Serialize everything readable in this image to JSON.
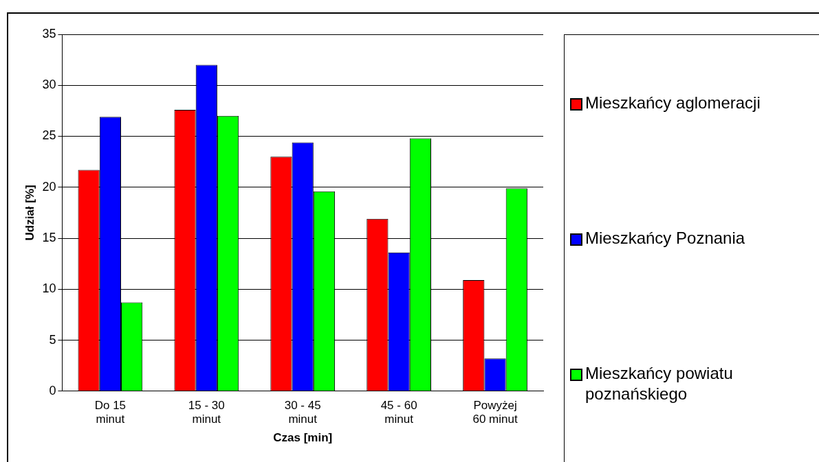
{
  "chart_data": {
    "type": "bar",
    "xlabel": "Czas [min]",
    "ylabel": "Udział [%]",
    "categories": [
      "Do 15 minut",
      "15 - 30 minut",
      "30 - 45 minut",
      "45 - 60 minut",
      "Powyżej 60 minut"
    ],
    "series": [
      {
        "name": "Mieszkańcy aglomeracji",
        "color": "#ff0000",
        "values": [
          21.7,
          27.6,
          23.0,
          16.9,
          10.9
        ]
      },
      {
        "name": "Mieszkańcy Poznania",
        "color": "#0000ff",
        "values": [
          26.9,
          32.0,
          24.4,
          13.6,
          3.2
        ]
      },
      {
        "name": "Mieszkańcy powiatu poznańskiego",
        "color": "#00ff00",
        "values": [
          8.7,
          27.0,
          19.6,
          24.8,
          19.9
        ]
      }
    ],
    "ylim": [
      0,
      35
    ],
    "yticks": [
      0,
      5,
      10,
      15,
      20,
      25,
      30,
      35
    ],
    "grid": "y",
    "legend": "right"
  }
}
